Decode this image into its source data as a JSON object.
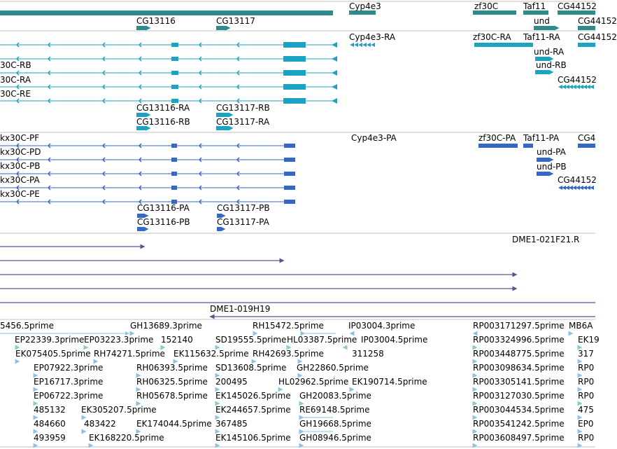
{
  "colors": {
    "gene": "#2e8b8b",
    "transcript": "#1aa3c2",
    "protein": "#3567c9",
    "clone": "#6a4c93",
    "est": "#8ec3df",
    "divider": "#bfbfbf"
  },
  "tracks": {
    "genes": {
      "labels": [
        "Cyp4e3",
        "zf30C",
        "Taf11",
        "CG44152",
        "CG13116",
        "CG13117",
        "und",
        "CG44152"
      ]
    },
    "transcripts": {
      "labels": [
        "Cyp4e3-RA",
        "zf30C-RA",
        "Taf11-RA",
        "CG44152",
        "und-RA",
        "und-RB",
        "CG44152",
        "30C-RB",
        "30C-RA",
        "30C-RE",
        "CG13116-RA",
        "CG13117-RB",
        "CG13116-RB",
        "CG13117-RA"
      ]
    },
    "proteins": {
      "labels": [
        "Cyp4e3-PA",
        "zf30C-PA",
        "Taf11-PA",
        "CG4",
        "und-PA",
        "und-PB",
        "CG44152",
        "kx30C-PF",
        "kx30C-PD",
        "kx30C-PB",
        "kx30C-PA",
        "kx30C-PE",
        "CG13116-PA",
        "CG13117-PB",
        "CG13116-PB",
        "CG13117-PA"
      ]
    },
    "clones": {
      "labels": [
        "DME1-021F21.R",
        "DME1-019H19"
      ]
    },
    "ests": {
      "labels": [
        "5456.5prime",
        "GH13689.3prime",
        "RH15472.5prime",
        "IP03004.3prime",
        "RP003171297.5prime",
        "MB6A",
        "EP22339.3prime",
        "EP03223.3prime",
        "152140",
        "SD19555.5prime",
        "HL03387.5prime",
        "IP03004.5prime",
        "RP003324996.5prime",
        "EK19",
        "EK075405.5prime",
        "RH74271.5prime",
        "EK115632.5prime",
        "RH42693.5prime",
        "311258",
        "RP003448775.5prime",
        "317",
        "EP07922.3prime",
        "RH06393.5prime",
        "SD13608.5prime",
        "GH22860.5prime",
        "RP003098634.5prime",
        "RP0",
        "EP16717.3prime",
        "RH06325.5prime",
        "200495",
        "HL02962.5prime",
        "EK190714.5prime",
        "RP003305141.5prime",
        "RP0",
        "EP06722.3prime",
        "RH05678.5prime",
        "EK145026.5prime",
        "GH20083.5prime",
        "RP003127030.5prime",
        "RP0",
        "485132",
        "EK305207.5prime",
        "EK244657.5prime",
        "RE69148.5prime",
        "RP003044534.5prime",
        "475",
        "484660",
        "483422",
        "EK174044.5prime",
        "367485",
        "GH19668.5prime",
        "RP003541242.5prime",
        "EP0",
        "493959",
        "EK168220.5prime",
        "EK145106.5prime",
        "GH08946.5prime",
        "RP003608497.5prime",
        "RP0"
      ]
    }
  }
}
